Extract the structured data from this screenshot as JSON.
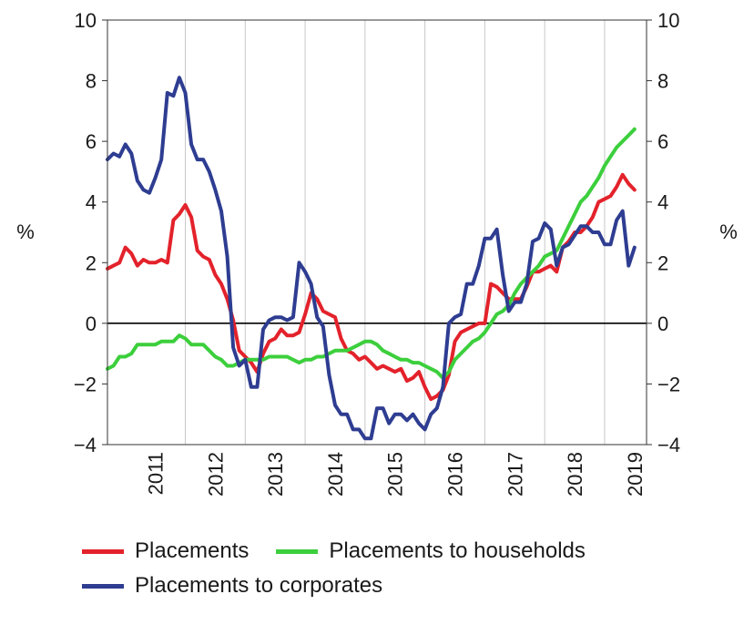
{
  "chart_data": {
    "type": "line",
    "ylabel_left": "%",
    "ylabel_right": "%",
    "ylim": [
      -4,
      10
    ],
    "yticks": [
      "10",
      "8",
      "6",
      "4",
      "2",
      "0",
      "−2",
      "−4"
    ],
    "xlim": [
      2010.2,
      2019.2
    ],
    "xticks": [
      "2011",
      "2012",
      "2013",
      "2014",
      "2015",
      "2016",
      "2017",
      "2018",
      "2019"
    ],
    "grid": "vertical",
    "legend_position": "bottom",
    "series": [
      {
        "name": "Placements",
        "color": "#e3222b",
        "x": [
          2010.2,
          2010.3,
          2010.4,
          2010.5,
          2010.6,
          2010.7,
          2010.8,
          2010.9,
          2011.0,
          2011.1,
          2011.2,
          2011.3,
          2011.4,
          2011.5,
          2011.6,
          2011.7,
          2011.8,
          2011.9,
          2012.0,
          2012.1,
          2012.2,
          2012.3,
          2012.4,
          2012.5,
          2012.6,
          2012.7,
          2012.8,
          2012.9,
          2013.0,
          2013.1,
          2013.2,
          2013.3,
          2013.4,
          2013.5,
          2013.6,
          2013.7,
          2013.8,
          2013.9,
          2014.0,
          2014.1,
          2014.2,
          2014.3,
          2014.4,
          2014.5,
          2014.6,
          2014.7,
          2014.8,
          2014.9,
          2015.0,
          2015.1,
          2015.2,
          2015.3,
          2015.4,
          2015.5,
          2015.6,
          2015.7,
          2015.8,
          2015.9,
          2016.0,
          2016.1,
          2016.2,
          2016.3,
          2016.4,
          2016.5,
          2016.6,
          2016.7,
          2016.8,
          2016.9,
          2017.0,
          2017.1,
          2017.2,
          2017.3,
          2017.4,
          2017.5,
          2017.6,
          2017.7,
          2017.8,
          2017.9,
          2018.0,
          2018.1,
          2018.2,
          2018.3,
          2018.4,
          2018.5,
          2018.6,
          2018.7,
          2018.8,
          2018.9,
          2019.0
        ],
        "values": [
          1.8,
          1.9,
          2.0,
          2.5,
          2.3,
          1.9,
          2.1,
          2.0,
          2.0,
          2.1,
          2.0,
          3.4,
          3.6,
          3.9,
          3.5,
          2.4,
          2.2,
          2.1,
          1.6,
          1.3,
          0.8,
          0.1,
          -0.9,
          -1.1,
          -1.3,
          -1.6,
          -1.0,
          -0.6,
          -0.5,
          -0.2,
          -0.4,
          -0.4,
          -0.3,
          0.3,
          1.0,
          0.8,
          0.4,
          0.3,
          0.2,
          -0.5,
          -0.9,
          -1.0,
          -1.2,
          -1.1,
          -1.3,
          -1.5,
          -1.4,
          -1.5,
          -1.6,
          -1.5,
          -1.9,
          -1.8,
          -1.6,
          -2.1,
          -2.5,
          -2.4,
          -2.2,
          -1.7,
          -0.6,
          -0.3,
          -0.2,
          -0.1,
          0.0,
          0.0,
          1.3,
          1.2,
          1.0,
          0.8,
          0.8,
          0.8,
          1.2,
          1.7,
          1.7,
          1.8,
          1.9,
          1.7,
          2.5,
          2.7,
          3.0,
          3.0,
          3.2,
          3.5,
          4.0,
          4.1,
          4.2,
          4.5,
          4.9,
          4.6,
          4.4
        ]
      },
      {
        "name": "Placements to households",
        "color": "#3ccf3c",
        "x": [
          2010.2,
          2010.3,
          2010.4,
          2010.5,
          2010.6,
          2010.7,
          2010.8,
          2010.9,
          2011.0,
          2011.1,
          2011.2,
          2011.3,
          2011.4,
          2011.5,
          2011.6,
          2011.7,
          2011.8,
          2011.9,
          2012.0,
          2012.1,
          2012.2,
          2012.3,
          2012.4,
          2012.5,
          2012.6,
          2012.7,
          2012.8,
          2012.9,
          2013.0,
          2013.1,
          2013.2,
          2013.3,
          2013.4,
          2013.5,
          2013.6,
          2013.7,
          2013.8,
          2013.9,
          2014.0,
          2014.1,
          2014.2,
          2014.3,
          2014.4,
          2014.5,
          2014.6,
          2014.7,
          2014.8,
          2014.9,
          2015.0,
          2015.1,
          2015.2,
          2015.3,
          2015.4,
          2015.5,
          2015.6,
          2015.7,
          2015.8,
          2015.9,
          2016.0,
          2016.1,
          2016.2,
          2016.3,
          2016.4,
          2016.5,
          2016.6,
          2016.7,
          2016.8,
          2016.9,
          2017.0,
          2017.1,
          2017.2,
          2017.3,
          2017.4,
          2017.5,
          2017.6,
          2017.7,
          2017.8,
          2017.9,
          2018.0,
          2018.1,
          2018.2,
          2018.3,
          2018.4,
          2018.5,
          2018.6,
          2018.7,
          2018.8,
          2018.9,
          2019.0
        ],
        "values": [
          -1.5,
          -1.4,
          -1.1,
          -1.1,
          -1.0,
          -0.7,
          -0.7,
          -0.7,
          -0.7,
          -0.6,
          -0.6,
          -0.6,
          -0.4,
          -0.5,
          -0.7,
          -0.7,
          -0.7,
          -0.9,
          -1.1,
          -1.2,
          -1.4,
          -1.4,
          -1.3,
          -1.2,
          -1.2,
          -1.2,
          -1.2,
          -1.1,
          -1.1,
          -1.1,
          -1.1,
          -1.2,
          -1.3,
          -1.2,
          -1.2,
          -1.1,
          -1.1,
          -1.0,
          -0.9,
          -0.9,
          -0.9,
          -0.8,
          -0.7,
          -0.6,
          -0.6,
          -0.7,
          -0.9,
          -1.0,
          -1.1,
          -1.2,
          -1.2,
          -1.3,
          -1.3,
          -1.4,
          -1.5,
          -1.6,
          -1.8,
          -1.6,
          -1.2,
          -1.0,
          -0.8,
          -0.6,
          -0.5,
          -0.3,
          0.0,
          0.3,
          0.4,
          0.6,
          1.0,
          1.3,
          1.5,
          1.7,
          1.9,
          2.2,
          2.3,
          2.4,
          2.8,
          3.2,
          3.6,
          4.0,
          4.2,
          4.5,
          4.8,
          5.2,
          5.5,
          5.8,
          6.0,
          6.2,
          6.4
        ]
      },
      {
        "name": "Placements to corporates",
        "color": "#2e3d91",
        "x": [
          2010.2,
          2010.3,
          2010.4,
          2010.5,
          2010.6,
          2010.7,
          2010.8,
          2010.9,
          2011.0,
          2011.1,
          2011.2,
          2011.3,
          2011.4,
          2011.5,
          2011.6,
          2011.7,
          2011.8,
          2011.9,
          2012.0,
          2012.1,
          2012.2,
          2012.3,
          2012.4,
          2012.5,
          2012.6,
          2012.7,
          2012.8,
          2012.9,
          2013.0,
          2013.1,
          2013.2,
          2013.3,
          2013.4,
          2013.5,
          2013.6,
          2013.7,
          2013.8,
          2013.9,
          2014.0,
          2014.1,
          2014.2,
          2014.3,
          2014.4,
          2014.5,
          2014.6,
          2014.7,
          2014.8,
          2014.9,
          2015.0,
          2015.1,
          2015.2,
          2015.3,
          2015.4,
          2015.5,
          2015.6,
          2015.7,
          2015.8,
          2015.9,
          2016.0,
          2016.1,
          2016.2,
          2016.3,
          2016.4,
          2016.5,
          2016.6,
          2016.7,
          2016.8,
          2016.9,
          2017.0,
          2017.1,
          2017.2,
          2017.3,
          2017.4,
          2017.5,
          2017.6,
          2017.7,
          2017.8,
          2017.9,
          2018.0,
          2018.1,
          2018.2,
          2018.3,
          2018.4,
          2018.5,
          2018.6,
          2018.7,
          2018.8,
          2018.9,
          2019.0
        ],
        "values": [
          5.4,
          5.6,
          5.5,
          5.9,
          5.6,
          4.7,
          4.4,
          4.3,
          4.8,
          5.4,
          7.6,
          7.5,
          8.1,
          7.6,
          5.9,
          5.4,
          5.4,
          5.0,
          4.4,
          3.7,
          2.2,
          -0.8,
          -1.4,
          -1.2,
          -2.1,
          -2.1,
          -0.2,
          0.1,
          0.2,
          0.2,
          0.1,
          0.2,
          2.0,
          1.7,
          1.3,
          0.2,
          -0.1,
          -1.7,
          -2.7,
          -3.0,
          -3.0,
          -3.5,
          -3.5,
          -3.8,
          -3.8,
          -2.8,
          -2.8,
          -3.3,
          -3.0,
          -3.0,
          -3.2,
          -3.0,
          -3.3,
          -3.5,
          -3.0,
          -2.8,
          -2.1,
          0.0,
          0.2,
          0.3,
          1.3,
          1.3,
          1.9,
          2.8,
          2.8,
          3.1,
          1.6,
          0.4,
          0.7,
          0.7,
          1.3,
          2.7,
          2.8,
          3.3,
          3.1,
          1.9,
          2.5,
          2.6,
          2.9,
          3.2,
          3.2,
          3.0,
          3.0,
          2.6,
          2.6,
          3.4,
          3.7,
          1.9,
          2.5
        ]
      }
    ]
  }
}
